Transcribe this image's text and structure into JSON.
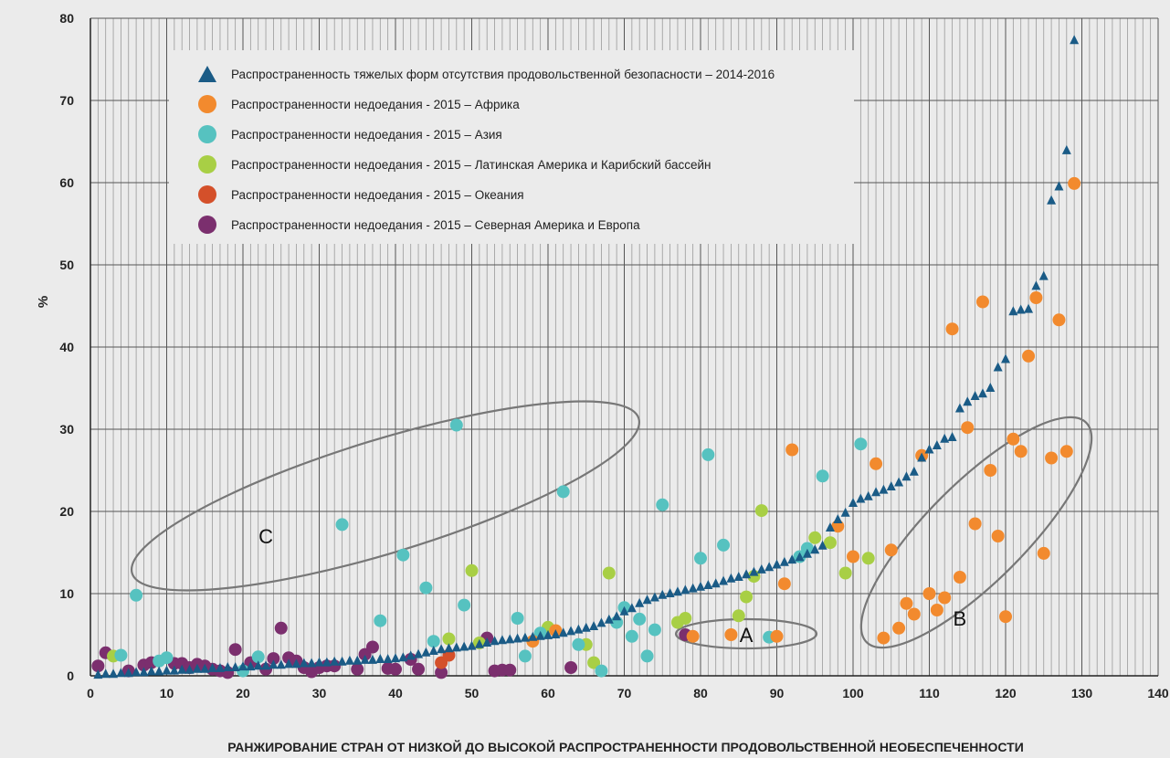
{
  "chart_data": {
    "type": "scatter",
    "title": "",
    "xlabel": "РАНЖИРОВАНИЕ СТРАН ОТ НИЗКОЙ ДО ВЫСОКОЙ РАСПРОСТРАНЕННОСТИ ПРОДОВОЛЬСТВЕННОЙ НЕОБЕСПЕЧЕННОСТИ",
    "ylabel": "%",
    "xlim": [
      0,
      140
    ],
    "ylim": [
      0,
      80
    ],
    "x_ticks": [
      0,
      10,
      20,
      30,
      40,
      50,
      60,
      70,
      80,
      90,
      100,
      110,
      120,
      130,
      140
    ],
    "y_ticks": [
      0,
      10,
      20,
      30,
      40,
      50,
      60,
      70,
      80
    ],
    "grid": true,
    "legend_position": "top-left",
    "series": [
      {
        "name": "Распространенность тяжелых форм отсутствия продовольственной безопасности – 2014-2016",
        "marker": "triangle",
        "color": "#1a5b86",
        "x": [
          1,
          2,
          3,
          4,
          5,
          6,
          7,
          8,
          9,
          10,
          11,
          12,
          13,
          14,
          15,
          16,
          17,
          18,
          19,
          20,
          21,
          22,
          23,
          24,
          25,
          26,
          27,
          28,
          29,
          30,
          31,
          32,
          33,
          34,
          35,
          36,
          37,
          38,
          39,
          40,
          41,
          42,
          43,
          44,
          45,
          46,
          47,
          48,
          49,
          50,
          51,
          52,
          53,
          54,
          55,
          56,
          57,
          58,
          59,
          60,
          61,
          62,
          63,
          64,
          65,
          66,
          67,
          68,
          69,
          70,
          71,
          72,
          73,
          74,
          75,
          76,
          77,
          78,
          79,
          80,
          81,
          82,
          83,
          84,
          85,
          86,
          87,
          88,
          89,
          90,
          91,
          92,
          93,
          94,
          95,
          96,
          97,
          98,
          99,
          100,
          101,
          102,
          103,
          104,
          105,
          106,
          107,
          108,
          109,
          110,
          111,
          112,
          113,
          114,
          115,
          116,
          117,
          118,
          119,
          120,
          121,
          122,
          123,
          124,
          125,
          126,
          127,
          128,
          129
        ],
        "y": [
          0.1,
          0.2,
          0.2,
          0.3,
          0.3,
          0.4,
          0.4,
          0.5,
          0.5,
          0.6,
          0.6,
          0.7,
          0.7,
          0.8,
          0.8,
          0.9,
          0.9,
          1.0,
          1.0,
          1.1,
          1.1,
          1.2,
          1.2,
          1.3,
          1.3,
          1.4,
          1.4,
          1.5,
          1.5,
          1.6,
          1.6,
          1.7,
          1.7,
          1.8,
          1.8,
          1.9,
          1.9,
          2.0,
          2.0,
          2.1,
          2.2,
          2.4,
          2.6,
          2.8,
          3.0,
          3.2,
          3.3,
          3.4,
          3.5,
          3.6,
          3.8,
          4.0,
          4.2,
          4.3,
          4.4,
          4.5,
          4.6,
          4.7,
          4.8,
          4.9,
          5.0,
          5.2,
          5.4,
          5.6,
          5.8,
          6.0,
          6.4,
          6.8,
          7.2,
          7.8,
          8.2,
          8.8,
          9.2,
          9.5,
          9.8,
          10.0,
          10.2,
          10.4,
          10.6,
          10.8,
          11.0,
          11.2,
          11.5,
          11.8,
          12.0,
          12.3,
          12.6,
          12.9,
          13.2,
          13.5,
          13.8,
          14.1,
          14.4,
          14.8,
          15.3,
          15.8,
          18.0,
          19.0,
          19.8,
          21.0,
          21.5,
          21.8,
          22.3,
          22.6,
          23.0,
          23.5,
          24.2,
          24.8,
          26.5,
          27.5,
          28.0,
          28.8,
          29.0,
          32.5,
          33.3,
          34.0,
          34.3,
          35.0,
          37.5,
          38.5,
          44.3,
          44.5,
          44.6,
          47.4,
          48.6,
          57.8,
          59.5,
          63.9,
          77.3
        ]
      },
      {
        "name": "Распространенности недоедания - 2015 – Африка",
        "marker": "circle",
        "color": "#f28a2e",
        "x": [
          58,
          61,
          79,
          84,
          90,
          91,
          92,
          98,
          100,
          103,
          104,
          105,
          106,
          107,
          108,
          109,
          110,
          111,
          112,
          113,
          114,
          115,
          116,
          117,
          118,
          119,
          120,
          121,
          122,
          123,
          124,
          125,
          126,
          127,
          128,
          129
        ],
        "y": [
          4.2,
          5.5,
          4.8,
          5.0,
          4.8,
          11.2,
          27.5,
          18.2,
          14.5,
          25.8,
          4.6,
          15.3,
          5.8,
          8.8,
          7.5,
          26.8,
          10.0,
          8.0,
          9.5,
          42.2,
          12.0,
          30.2,
          18.5,
          45.5,
          25.0,
          17.0,
          7.2,
          28.8,
          27.3,
          38.9,
          46.0,
          14.9,
          26.5,
          43.3,
          27.3,
          59.9
        ]
      },
      {
        "name": "Распространенности недоедания - 2015 – Азия",
        "marker": "circle",
        "color": "#56c2c0",
        "x": [
          4,
          6,
          9,
          10,
          20,
          22,
          33,
          38,
          41,
          44,
          45,
          48,
          49,
          56,
          57,
          59,
          62,
          64,
          67,
          69,
          70,
          71,
          72,
          73,
          74,
          75,
          80,
          81,
          83,
          89,
          93,
          94,
          96,
          101
        ],
        "y": [
          2.5,
          9.8,
          1.8,
          2.2,
          0.6,
          2.3,
          18.4,
          6.7,
          14.7,
          10.7,
          4.2,
          30.5,
          8.6,
          7.0,
          2.4,
          5.2,
          22.4,
          3.8,
          0.6,
          6.5,
          8.3,
          4.8,
          6.9,
          2.4,
          5.6,
          20.8,
          14.3,
          26.9,
          15.9,
          4.7,
          14.5,
          15.5,
          24.3,
          28.2
        ]
      },
      {
        "name": "Распространенности недоедания - 2015 – Латинская Америка и Карибский бассейн",
        "marker": "circle",
        "color": "#a8cf45",
        "x": [
          3,
          47,
          50,
          51,
          60,
          65,
          66,
          68,
          77,
          78,
          85,
          86,
          87,
          88,
          95,
          97,
          99,
          102
        ],
        "y": [
          2.4,
          4.5,
          12.8,
          4.0,
          5.9,
          3.8,
          1.6,
          12.5,
          6.5,
          7.0,
          7.3,
          9.6,
          12.1,
          20.1,
          16.8,
          16.2,
          12.5,
          14.3
        ]
      },
      {
        "name": "Распространенности недоедания - 2015 – Океания",
        "marker": "circle",
        "color": "#d4502a",
        "x": [
          46,
          47
        ],
        "y": [
          1.6,
          2.5
        ]
      },
      {
        "name": "Распространенности недоедания - 2015 – Северная Америка и Европа",
        "marker": "circle",
        "color": "#7b2f6e",
        "x": [
          1,
          2,
          5,
          7,
          8,
          11,
          12,
          13,
          14,
          15,
          16,
          17,
          18,
          19,
          21,
          23,
          24,
          25,
          26,
          27,
          28,
          29,
          30,
          31,
          32,
          35,
          36,
          37,
          39,
          40,
          42,
          43,
          46,
          52,
          53,
          54,
          55,
          63,
          78
        ],
        "y": [
          1.2,
          2.8,
          0.6,
          1.3,
          1.6,
          1.5,
          1.5,
          1.0,
          1.4,
          1.2,
          0.8,
          0.6,
          0.4,
          3.2,
          1.6,
          0.8,
          2.1,
          5.8,
          2.2,
          1.8,
          1.0,
          0.5,
          1.0,
          1.2,
          1.2,
          0.8,
          2.6,
          3.5,
          0.9,
          0.8,
          2.0,
          0.8,
          0.4,
          4.6,
          0.6,
          0.7,
          0.7,
          1.0,
          5.0
        ]
      }
    ],
    "annotations": [
      {
        "label": "A",
        "x": 86,
        "y": 5
      },
      {
        "label": "B",
        "x": 114,
        "y": 7
      },
      {
        "label": "C",
        "x": 23,
        "y": 17
      }
    ]
  }
}
